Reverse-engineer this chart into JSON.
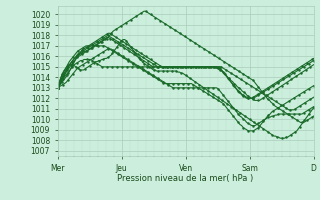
{
  "xlabel": "Pression niveau de la mer( hPa )",
  "ylim": [
    1006.5,
    1020.8
  ],
  "yticks": [
    1007,
    1008,
    1009,
    1010,
    1011,
    1012,
    1013,
    1014,
    1015,
    1016,
    1017,
    1018,
    1019,
    1020
  ],
  "xtick_labels": [
    "Mer",
    "Jeu",
    "Ven",
    "Sam",
    "D"
  ],
  "xtick_positions": [
    0,
    48,
    96,
    144,
    192
  ],
  "background_color": "#cceedd",
  "grid_color_major": "#aaccbb",
  "grid_color_minor": "#bbddcc",
  "line_color": "#1a6b2a",
  "total_points": 193,
  "series": [
    [
      1013.0,
      1013.5,
      1013.9,
      1014.3,
      1014.6,
      1014.8,
      1015.0,
      1015.1,
      1015.2,
      1015.2,
      1015.2,
      1015.1,
      1015.0,
      1014.9,
      1014.8,
      1014.7,
      1014.7,
      1014.7,
      1014.8,
      1014.9,
      1015.0,
      1015.1,
      1015.2,
      1015.3,
      1015.4,
      1015.5,
      1015.5,
      1015.6,
      1015.6,
      1015.7,
      1015.7,
      1015.8,
      1015.8,
      1015.9,
      1016.0,
      1016.1,
      1016.3,
      1016.5,
      1016.7,
      1016.9,
      1017.1,
      1017.3,
      1017.5,
      1017.6,
      1017.6,
      1017.5,
      1017.3,
      1017.1,
      1016.9,
      1016.7,
      1016.5,
      1016.3,
      1016.1,
      1015.9,
      1015.7,
      1015.6,
      1015.4,
      1015.3,
      1015.2,
      1015.1,
      1015.0,
      1014.9,
      1014.8,
      1014.7,
      1014.7,
      1014.6,
      1014.6,
      1014.6,
      1014.6,
      1014.6,
      1014.6,
      1014.6,
      1014.6,
      1014.6,
      1014.6,
      1014.6,
      1014.6,
      1014.6,
      1014.6,
      1014.5,
      1014.5,
      1014.4,
      1014.4,
      1014.3,
      1014.2,
      1014.1,
      1014.0,
      1013.9,
      1013.8,
      1013.7,
      1013.6,
      1013.5,
      1013.4,
      1013.3,
      1013.2,
      1013.1,
      1013.0,
      1012.9,
      1012.8,
      1012.7,
      1012.6,
      1012.5,
      1012.4,
      1012.3,
      1012.2,
      1012.1,
      1012.0,
      1011.9,
      1011.8,
      1011.7,
      1011.6,
      1011.5,
      1011.4,
      1011.3,
      1011.2,
      1011.1,
      1011.0,
      1010.9,
      1010.8,
      1010.7,
      1010.6,
      1010.5,
      1010.4,
      1010.3,
      1010.2,
      1010.1,
      1010.0,
      1009.9,
      1009.8,
      1009.7,
      1009.6,
      1009.5,
      1009.4,
      1009.3,
      1009.2,
      1009.1,
      1009.0,
      1008.9,
      1008.8,
      1008.7,
      1008.6,
      1008.5,
      1008.4,
      1008.4,
      1008.3,
      1008.3,
      1008.2,
      1008.2,
      1008.2,
      1008.2,
      1008.3,
      1008.3,
      1008.4,
      1008.5,
      1008.6,
      1008.7,
      1008.8,
      1008.9,
      1009.1,
      1009.3,
      1009.5,
      1009.7,
      1009.9,
      1010.1,
      1010.3,
      1010.5,
      1010.7,
      1010.9,
      1011.1
    ],
    [
      1013.0,
      1013.3,
      1013.6,
      1013.9,
      1014.2,
      1014.5,
      1014.8,
      1015.1,
      1015.3,
      1015.5,
      1015.7,
      1015.8,
      1016.0,
      1016.1,
      1016.2,
      1016.3,
      1016.4,
      1016.5,
      1016.5,
      1016.6,
      1016.7,
      1016.8,
      1016.9,
      1017.0,
      1017.1,
      1017.2,
      1017.3,
      1017.4,
      1017.5,
      1017.6,
      1017.7,
      1017.8,
      1017.8,
      1017.7,
      1017.6,
      1017.5,
      1017.4,
      1017.3,
      1017.2,
      1017.1,
      1017.0,
      1016.9,
      1016.8,
      1016.7,
      1016.6,
      1016.5,
      1016.4,
      1016.3,
      1016.2,
      1016.1,
      1016.0,
      1015.9,
      1015.8,
      1015.7,
      1015.6,
      1015.5,
      1015.4,
      1015.3,
      1015.2,
      1015.1,
      1015.0,
      1015.0,
      1015.0,
      1015.0,
      1015.0,
      1015.0,
      1015.0,
      1015.0,
      1015.0,
      1015.0,
      1015.0,
      1015.0,
      1015.0,
      1015.0,
      1015.0,
      1015.0,
      1015.0,
      1015.0,
      1015.0,
      1015.0,
      1015.0,
      1015.0,
      1015.0,
      1015.0,
      1015.0,
      1015.0,
      1015.0,
      1015.0,
      1015.0,
      1015.0,
      1015.0,
      1015.0,
      1015.0,
      1015.0,
      1015.0,
      1015.0,
      1015.0,
      1015.0,
      1015.0,
      1015.0,
      1014.9,
      1014.8,
      1014.7,
      1014.6,
      1014.5,
      1014.3,
      1014.2,
      1014.0,
      1013.9,
      1013.7,
      1013.6,
      1013.4,
      1013.3,
      1013.1,
      1013.0,
      1012.9,
      1012.7,
      1012.6,
      1012.5,
      1012.3,
      1012.2,
      1012.1,
      1012.0,
      1011.9,
      1011.8,
      1011.8,
      1011.8,
      1011.8,
      1011.9,
      1012.0,
      1012.1,
      1012.2,
      1012.3,
      1012.4,
      1012.5,
      1012.6,
      1012.7,
      1012.8,
      1012.9,
      1013.0,
      1013.1,
      1013.2,
      1013.3,
      1013.4,
      1013.5,
      1013.6,
      1013.7,
      1013.8,
      1013.9,
      1014.0,
      1014.1,
      1014.2,
      1014.3,
      1014.4,
      1014.5,
      1014.6,
      1014.7,
      1014.8,
      1014.9,
      1015.0,
      1015.1,
      1015.2
    ],
    [
      1013.0,
      1013.2,
      1013.4,
      1013.6,
      1013.8,
      1014.0,
      1014.2,
      1014.5,
      1014.8,
      1015.1,
      1015.4,
      1015.7,
      1016.0,
      1016.2,
      1016.4,
      1016.6,
      1016.7,
      1016.8,
      1016.9,
      1017.0,
      1017.1,
      1017.2,
      1017.3,
      1017.4,
      1017.5,
      1017.6,
      1017.7,
      1017.8,
      1017.9,
      1018.0,
      1018.1,
      1018.2,
      1018.2,
      1018.1,
      1018.0,
      1017.9,
      1017.8,
      1017.7,
      1017.6,
      1017.5,
      1017.4,
      1017.3,
      1017.2,
      1017.1,
      1017.0,
      1016.9,
      1016.8,
      1016.7,
      1016.6,
      1016.5,
      1016.4,
      1016.3,
      1016.2,
      1016.1,
      1016.0,
      1015.9,
      1015.8,
      1015.7,
      1015.6,
      1015.5,
      1015.4,
      1015.3,
      1015.2,
      1015.1,
      1015.0,
      1015.0,
      1015.0,
      1015.0,
      1015.0,
      1015.0,
      1015.0,
      1015.0,
      1015.0,
      1015.0,
      1015.0,
      1015.0,
      1015.0,
      1015.0,
      1015.0,
      1015.0,
      1015.0,
      1015.0,
      1015.0,
      1015.0,
      1015.0,
      1015.0,
      1015.0,
      1015.0,
      1015.0,
      1015.0,
      1015.0,
      1015.0,
      1015.0,
      1015.0,
      1015.0,
      1015.0,
      1015.0,
      1015.0,
      1015.0,
      1015.0,
      1014.8,
      1014.6,
      1014.4,
      1014.2,
      1014.0,
      1013.8,
      1013.6,
      1013.4,
      1013.2,
      1013.0,
      1012.8,
      1012.6,
      1012.5,
      1012.3,
      1012.2,
      1012.1,
      1012.0,
      1012.0,
      1012.0,
      1012.0,
      1012.1,
      1012.2,
      1012.3,
      1012.4,
      1012.5,
      1012.6,
      1012.7,
      1012.8,
      1012.9,
      1013.0,
      1013.1,
      1013.2,
      1013.3,
      1013.4,
      1013.5,
      1013.6,
      1013.7,
      1013.8,
      1013.9,
      1014.0,
      1014.1,
      1014.2,
      1014.3,
      1014.4,
      1014.5,
      1014.6,
      1014.7,
      1014.8,
      1014.9,
      1015.0,
      1015.1,
      1015.2,
      1015.3,
      1015.4,
      1015.5,
      1015.6,
      1015.7,
      1015.8
    ],
    [
      1013.0,
      1013.5,
      1014.0,
      1014.3,
      1014.6,
      1014.9,
      1015.2,
      1015.5,
      1015.7,
      1015.9,
      1016.1,
      1016.3,
      1016.5,
      1016.6,
      1016.7,
      1016.8,
      1016.9,
      1017.0,
      1017.0,
      1017.0,
      1017.0,
      1017.0,
      1017.0,
      1017.0,
      1017.0,
      1017.0,
      1017.0,
      1017.0,
      1017.0,
      1016.9,
      1016.8,
      1016.7,
      1016.6,
      1016.5,
      1016.4,
      1016.3,
      1016.2,
      1016.1,
      1016.0,
      1015.9,
      1015.8,
      1015.7,
      1015.6,
      1015.5,
      1015.4,
      1015.3,
      1015.2,
      1015.1,
      1015.0,
      1014.9,
      1014.8,
      1014.7,
      1014.6,
      1014.5,
      1014.4,
      1014.3,
      1014.2,
      1014.1,
      1014.0,
      1013.9,
      1013.8,
      1013.7,
      1013.6,
      1013.5,
      1013.4,
      1013.4,
      1013.4,
      1013.4,
      1013.4,
      1013.4,
      1013.4,
      1013.4,
      1013.4,
      1013.4,
      1013.4,
      1013.4,
      1013.4,
      1013.4,
      1013.4,
      1013.4,
      1013.4,
      1013.3,
      1013.2,
      1013.1,
      1013.0,
      1012.9,
      1012.8,
      1012.7,
      1012.6,
      1012.5,
      1012.4,
      1012.3,
      1012.2,
      1012.1,
      1012.0,
      1011.9,
      1011.8,
      1011.7,
      1011.6,
      1011.5,
      1011.3,
      1011.1,
      1010.9,
      1010.7,
      1010.5,
      1010.3,
      1010.1,
      1009.9,
      1009.7,
      1009.5,
      1009.4,
      1009.2,
      1009.1,
      1009.0,
      1008.9,
      1008.9,
      1008.9,
      1008.9,
      1009.0,
      1009.1,
      1009.2,
      1009.4,
      1009.6,
      1009.8,
      1010.0,
      1010.2,
      1010.4,
      1010.5,
      1010.7,
      1010.8,
      1010.9,
      1011.0,
      1011.1,
      1011.2,
      1011.3,
      1011.4,
      1011.5,
      1011.6,
      1011.7,
      1011.8,
      1011.9,
      1012.0,
      1012.1,
      1012.2,
      1012.3,
      1012.4,
      1012.5,
      1012.6,
      1012.7,
      1012.8,
      1012.9,
      1013.0,
      1013.1,
      1013.2
    ],
    [
      1013.0,
      1013.2,
      1013.5,
      1013.8,
      1014.1,
      1014.4,
      1014.7,
      1014.9,
      1015.1,
      1015.3,
      1015.5,
      1015.7,
      1015.9,
      1016.0,
      1016.1,
      1016.2,
      1016.3,
      1016.4,
      1016.5,
      1016.6,
      1016.7,
      1016.8,
      1016.9,
      1017.0,
      1017.1,
      1017.2,
      1017.3,
      1017.4,
      1017.5,
      1017.6,
      1017.7,
      1017.8,
      1018.0,
      1018.2,
      1018.4,
      1018.5,
      1018.6,
      1018.7,
      1018.8,
      1018.9,
      1019.0,
      1019.1,
      1019.2,
      1019.3,
      1019.4,
      1019.5,
      1019.6,
      1019.7,
      1019.8,
      1019.9,
      1020.0,
      1020.1,
      1020.2,
      1020.3,
      1020.3,
      1020.2,
      1020.1,
      1020.0,
      1019.9,
      1019.8,
      1019.7,
      1019.6,
      1019.5,
      1019.4,
      1019.3,
      1019.2,
      1019.1,
      1019.0,
      1018.9,
      1018.8,
      1018.7,
      1018.6,
      1018.5,
      1018.4,
      1018.3,
      1018.2,
      1018.1,
      1018.0,
      1017.9,
      1017.8,
      1017.7,
      1017.6,
      1017.5,
      1017.4,
      1017.3,
      1017.2,
      1017.1,
      1017.0,
      1016.9,
      1016.8,
      1016.7,
      1016.6,
      1016.5,
      1016.4,
      1016.3,
      1016.2,
      1016.1,
      1016.0,
      1015.9,
      1015.8,
      1015.7,
      1015.6,
      1015.5,
      1015.4,
      1015.3,
      1015.2,
      1015.1,
      1015.0,
      1014.9,
      1014.8,
      1014.7,
      1014.6,
      1014.5,
      1014.4,
      1014.3,
      1014.2,
      1014.1,
      1014.0,
      1013.9,
      1013.8,
      1013.7,
      1013.5,
      1013.3,
      1013.1,
      1012.9,
      1012.7,
      1012.5,
      1012.3,
      1012.1,
      1011.9,
      1011.8,
      1011.6,
      1011.5,
      1011.3,
      1011.2,
      1011.1,
      1011.0,
      1010.9,
      1010.8,
      1010.7,
      1010.6,
      1010.5,
      1010.4,
      1010.3,
      1010.2,
      1010.1,
      1010.0,
      1009.9,
      1009.8,
      1009.7,
      1009.7,
      1009.7,
      1009.8,
      1009.9,
      1010.0,
      1010.1,
      1010.2,
      1010.3
    ],
    [
      1013.0,
      1013.3,
      1013.6,
      1013.8,
      1014.0,
      1014.2,
      1014.4,
      1014.6,
      1014.8,
      1015.0,
      1015.2,
      1015.3,
      1015.4,
      1015.5,
      1015.6,
      1015.6,
      1015.7,
      1015.7,
      1015.7,
      1015.7,
      1015.7,
      1015.6,
      1015.5,
      1015.4,
      1015.3,
      1015.2,
      1015.1,
      1015.0,
      1015.0,
      1015.0,
      1015.0,
      1015.0,
      1015.0,
      1015.0,
      1015.0,
      1015.0,
      1015.0,
      1015.0,
      1015.0,
      1015.0,
      1015.0,
      1015.0,
      1015.0,
      1015.0,
      1015.0,
      1015.0,
      1015.0,
      1015.0,
      1015.0,
      1015.0,
      1015.0,
      1015.0,
      1015.0,
      1015.0,
      1015.0,
      1015.0,
      1015.0,
      1015.0,
      1015.0,
      1015.0,
      1015.0,
      1015.0,
      1015.0,
      1015.0,
      1015.0,
      1015.0,
      1015.0,
      1015.0,
      1015.0,
      1015.0,
      1015.0,
      1015.0,
      1015.0,
      1015.0,
      1015.0,
      1015.0,
      1015.0,
      1015.0,
      1015.0,
      1015.0,
      1015.0,
      1015.0,
      1015.0,
      1015.0,
      1015.0,
      1015.0,
      1015.0,
      1015.0,
      1015.0,
      1015.0,
      1015.0,
      1015.0,
      1015.0,
      1015.0,
      1015.0,
      1015.0,
      1015.0,
      1015.0,
      1015.0,
      1015.0,
      1014.9,
      1014.8,
      1014.7,
      1014.6,
      1014.5,
      1014.4,
      1014.3,
      1014.2,
      1014.1,
      1014.0,
      1013.9,
      1013.8,
      1013.7,
      1013.6,
      1013.5,
      1013.4,
      1013.3,
      1013.2,
      1013.1,
      1013.0,
      1012.9,
      1012.8,
      1012.7,
      1012.6,
      1012.5,
      1012.4,
      1012.3,
      1012.2,
      1012.1,
      1012.0,
      1011.9,
      1011.8,
      1011.7,
      1011.6,
      1011.5,
      1011.4,
      1011.3,
      1011.2,
      1011.1,
      1011.0,
      1010.9,
      1010.9,
      1010.9,
      1010.9,
      1011.0,
      1011.1,
      1011.2,
      1011.3,
      1011.4,
      1011.5,
      1011.6,
      1011.7,
      1011.8,
      1011.9,
      1012.0,
      1012.1
    ],
    [
      1013.0,
      1013.4,
      1013.8,
      1014.1,
      1014.4,
      1014.7,
      1015.0,
      1015.2,
      1015.4,
      1015.6,
      1015.8,
      1016.0,
      1016.2,
      1016.3,
      1016.4,
      1016.5,
      1016.6,
      1016.7,
      1016.8,
      1016.9,
      1017.0,
      1017.1,
      1017.2,
      1017.3,
      1017.4,
      1017.5,
      1017.6,
      1017.7,
      1017.8,
      1017.9,
      1018.0,
      1017.9,
      1017.8,
      1017.7,
      1017.6,
      1017.5,
      1017.4,
      1017.3,
      1017.2,
      1017.1,
      1017.0,
      1016.9,
      1016.8,
      1016.7,
      1016.6,
      1016.5,
      1016.4,
      1016.3,
      1016.2,
      1016.1,
      1016.0,
      1015.9,
      1015.8,
      1015.7,
      1015.6,
      1015.5,
      1015.4,
      1015.3,
      1015.2,
      1015.1,
      1015.0,
      1015.0,
      1015.0,
      1015.0,
      1015.0,
      1015.0,
      1015.0,
      1015.0,
      1015.0,
      1015.0,
      1015.0,
      1015.0,
      1015.0,
      1015.0,
      1015.0,
      1015.0,
      1015.0,
      1015.0,
      1015.0,
      1015.0,
      1015.0,
      1015.0,
      1015.0,
      1015.0,
      1015.0,
      1015.0,
      1015.0,
      1015.0,
      1015.0,
      1015.0,
      1015.0,
      1015.0,
      1015.0,
      1015.0,
      1015.0,
      1015.0,
      1014.9,
      1014.8,
      1014.7,
      1014.5,
      1014.3,
      1014.1,
      1013.9,
      1013.7,
      1013.5,
      1013.3,
      1013.1,
      1012.9,
      1012.7,
      1012.6,
      1012.4,
      1012.3,
      1012.2,
      1012.1,
      1012.0,
      1012.0,
      1012.0,
      1012.0,
      1012.1,
      1012.2,
      1012.3,
      1012.4,
      1012.5,
      1012.6,
      1012.7,
      1012.8,
      1012.9,
      1013.0,
      1013.1,
      1013.2,
      1013.3,
      1013.4,
      1013.5,
      1013.6,
      1013.7,
      1013.8,
      1013.9,
      1014.0,
      1014.1,
      1014.2,
      1014.3,
      1014.4,
      1014.5,
      1014.6,
      1014.7,
      1014.8,
      1014.9,
      1015.0,
      1015.1,
      1015.2,
      1015.3,
      1015.4,
      1015.5,
      1015.6
    ],
    [
      1013.0,
      1013.1,
      1013.2,
      1013.3,
      1013.4,
      1013.5,
      1013.7,
      1013.9,
      1014.1,
      1014.3,
      1014.5,
      1014.7,
      1014.9,
      1015.0,
      1015.1,
      1015.2,
      1015.3,
      1015.4,
      1015.5,
      1015.6,
      1015.7,
      1015.8,
      1015.9,
      1016.0,
      1016.1,
      1016.2,
      1016.3,
      1016.4,
      1016.5,
      1016.6,
      1016.7,
      1016.7,
      1016.7,
      1016.6,
      1016.5,
      1016.4,
      1016.3,
      1016.2,
      1016.1,
      1016.0,
      1015.9,
      1015.8,
      1015.7,
      1015.6,
      1015.5,
      1015.4,
      1015.3,
      1015.2,
      1015.1,
      1015.0,
      1014.9,
      1014.8,
      1014.7,
      1014.6,
      1014.5,
      1014.4,
      1014.3,
      1014.2,
      1014.1,
      1014.0,
      1013.9,
      1013.8,
      1013.7,
      1013.6,
      1013.5,
      1013.4,
      1013.3,
      1013.2,
      1013.1,
      1013.0,
      1013.0,
      1013.0,
      1013.0,
      1013.0,
      1013.0,
      1013.0,
      1013.0,
      1013.0,
      1013.0,
      1013.0,
      1013.0,
      1013.0,
      1013.0,
      1013.0,
      1013.0,
      1013.0,
      1013.0,
      1013.0,
      1013.0,
      1013.0,
      1013.0,
      1013.0,
      1013.0,
      1013.0,
      1013.0,
      1013.0,
      1012.9,
      1012.7,
      1012.5,
      1012.3,
      1012.1,
      1011.9,
      1011.7,
      1011.5,
      1011.3,
      1011.1,
      1010.9,
      1010.7,
      1010.5,
      1010.3,
      1010.2,
      1010.0,
      1009.9,
      1009.7,
      1009.6,
      1009.5,
      1009.4,
      1009.4,
      1009.4,
      1009.5,
      1009.6,
      1009.7,
      1009.8,
      1009.9,
      1010.0,
      1010.1,
      1010.2,
      1010.2,
      1010.3,
      1010.3,
      1010.4,
      1010.4,
      1010.5,
      1010.5,
      1010.5,
      1010.5,
      1010.5,
      1010.5,
      1010.5,
      1010.5,
      1010.5,
      1010.5,
      1010.5,
      1010.5,
      1010.5,
      1010.5,
      1010.5,
      1010.6,
      1010.7,
      1010.8,
      1010.9,
      1011.0,
      1011.1,
      1011.2
    ]
  ]
}
